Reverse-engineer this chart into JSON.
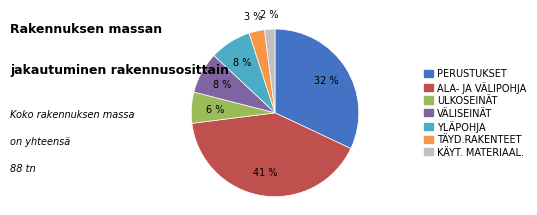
{
  "title_line1": "Rakennuksen massan",
  "title_line2": "jakautuminen rakennusosittain",
  "subtitle_line1": "Koko rakennuksen massa",
  "subtitle_line2": "on yhteensä",
  "subtitle_line3": "88 tn",
  "labels": [
    "PERUSTUKSET",
    "ALA- JA VÄLIPOHJA",
    "ULKOSEINÄT",
    "VÄLISEINÄT",
    "YLÄPOHJA",
    "TÄYD.RAKENTEET",
    "KÄYT. MATERIAAL."
  ],
  "values": [
    32,
    41,
    6,
    8,
    8,
    3,
    2
  ],
  "colors": [
    "#4472C4",
    "#C0504D",
    "#9BBB59",
    "#8064A2",
    "#4BACC6",
    "#F79646",
    "#C0C0C0"
  ],
  "title_fontsize": 9,
  "subtitle_fontsize": 7,
  "legend_fontsize": 7,
  "pct_fontsize": 7,
  "background_color": "#FFFFFF"
}
